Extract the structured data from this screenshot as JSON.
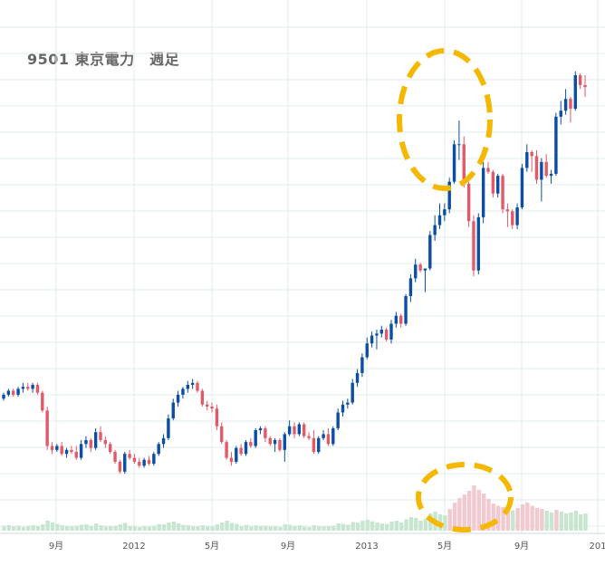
{
  "title": "9501 東京電力　週足",
  "colors": {
    "up": "#0b4ea2",
    "down": "#e05a6a",
    "grid": "#e2ebee",
    "volume": "#c8e6cf",
    "volume_highlight": "#f2c9cf",
    "annotation": "#f5b800"
  },
  "chart_data": {
    "type": "candlestick",
    "title": "9501 東京電力　週足",
    "x_tick_labels": [
      "9月",
      "2012",
      "5月",
      "9月",
      "2013",
      "5月",
      "9月",
      "201"
    ],
    "grid": true,
    "annotations": [
      {
        "shape": "dashed-ellipse",
        "target": "price spike around 5月 2013"
      },
      {
        "shape": "dashed-ellipse",
        "target": "volume spike around 5月 2013"
      }
    ],
    "ohlc": [
      [
        7.0,
        7.3,
        6.9,
        7.2
      ],
      [
        7.2,
        7.5,
        7.1,
        7.4
      ],
      [
        7.4,
        7.5,
        7.1,
        7.2
      ],
      [
        7.2,
        7.6,
        7.1,
        7.5
      ],
      [
        7.5,
        7.8,
        7.3,
        7.6
      ],
      [
        7.6,
        7.8,
        7.4,
        7.5
      ],
      [
        7.5,
        7.8,
        7.3,
        7.7
      ],
      [
        7.7,
        7.8,
        7.2,
        7.3
      ],
      [
        7.3,
        7.4,
        6.3,
        6.4
      ],
      [
        6.4,
        6.6,
        4.4,
        4.6
      ],
      [
        4.6,
        4.8,
        4.2,
        4.4
      ],
      [
        4.4,
        4.7,
        4.3,
        4.6
      ],
      [
        4.6,
        4.8,
        4.1,
        4.2
      ],
      [
        4.2,
        4.5,
        4.0,
        4.4
      ],
      [
        4.4,
        4.6,
        4.2,
        4.3
      ],
      [
        4.3,
        4.6,
        3.9,
        4.0
      ],
      [
        4.0,
        4.9,
        3.9,
        4.7
      ],
      [
        4.7,
        5.1,
        4.5,
        4.9
      ],
      [
        4.9,
        5.0,
        4.3,
        4.5
      ],
      [
        4.5,
        5.5,
        4.4,
        5.3
      ],
      [
        5.3,
        5.6,
        4.8,
        4.9
      ],
      [
        4.9,
        5.1,
        4.5,
        4.7
      ],
      [
        4.7,
        4.8,
        4.2,
        4.3
      ],
      [
        4.3,
        4.4,
        3.7,
        3.8
      ],
      [
        3.8,
        3.9,
        3.2,
        3.3
      ],
      [
        3.3,
        4.3,
        3.2,
        4.2
      ],
      [
        4.2,
        4.4,
        3.9,
        4.0
      ],
      [
        4.0,
        4.2,
        3.7,
        3.8
      ],
      [
        3.8,
        4.0,
        3.5,
        3.6
      ],
      [
        3.6,
        4.0,
        3.5,
        3.9
      ],
      [
        3.9,
        4.1,
        3.6,
        3.7
      ],
      [
        3.7,
        4.3,
        3.6,
        4.2
      ],
      [
        4.2,
        4.8,
        4.1,
        4.7
      ],
      [
        4.7,
        5.2,
        4.5,
        5.0
      ],
      [
        5.0,
        6.2,
        4.9,
        6.0
      ],
      [
        6.0,
        7.0,
        5.9,
        6.8
      ],
      [
        6.8,
        7.4,
        6.6,
        7.2
      ],
      [
        7.2,
        7.6,
        7.0,
        7.5
      ],
      [
        7.5,
        7.9,
        7.3,
        7.7
      ],
      [
        7.7,
        8.0,
        7.5,
        7.8
      ],
      [
        7.8,
        7.9,
        7.3,
        7.4
      ],
      [
        7.4,
        7.5,
        6.6,
        6.7
      ],
      [
        6.7,
        6.9,
        6.4,
        6.6
      ],
      [
        6.6,
        6.8,
        6.3,
        6.5
      ],
      [
        6.5,
        6.7,
        5.4,
        5.6
      ],
      [
        5.6,
        5.8,
        4.7,
        4.8
      ],
      [
        4.8,
        4.9,
        3.9,
        4.0
      ],
      [
        4.0,
        4.3,
        3.6,
        3.8
      ],
      [
        3.8,
        4.6,
        3.7,
        4.5
      ],
      [
        4.5,
        4.7,
        4.1,
        4.2
      ],
      [
        4.2,
        4.9,
        4.1,
        4.8
      ],
      [
        4.8,
        5.0,
        4.5,
        4.6
      ],
      [
        4.6,
        5.5,
        4.5,
        5.4
      ],
      [
        5.4,
        5.6,
        5.2,
        5.5
      ],
      [
        5.5,
        5.6,
        4.8,
        5.0
      ],
      [
        5.0,
        5.1,
        4.6,
        4.7
      ],
      [
        4.7,
        5.0,
        4.3,
        4.9
      ],
      [
        4.9,
        5.0,
        4.3,
        4.4
      ],
      [
        4.4,
        5.3,
        3.8,
        5.2
      ],
      [
        5.2,
        5.9,
        5.1,
        5.6
      ],
      [
        5.6,
        5.8,
        5.0,
        5.2
      ],
      [
        5.2,
        5.8,
        5.1,
        5.7
      ],
      [
        5.7,
        5.8,
        5.0,
        5.1
      ],
      [
        5.1,
        5.3,
        4.9,
        5.0
      ],
      [
        5.0,
        5.4,
        4.2,
        4.3
      ],
      [
        4.3,
        5.1,
        4.2,
        5.0
      ],
      [
        5.0,
        5.4,
        4.9,
        5.2
      ],
      [
        5.2,
        5.5,
        4.6,
        4.7
      ],
      [
        4.7,
        5.6,
        4.6,
        5.5
      ],
      [
        5.5,
        6.5,
        5.4,
        6.3
      ],
      [
        6.3,
        6.9,
        6.1,
        6.7
      ],
      [
        6.7,
        7.0,
        6.5,
        6.8
      ],
      [
        6.8,
        8.0,
        6.7,
        7.8
      ],
      [
        7.8,
        8.5,
        7.6,
        8.3
      ],
      [
        8.3,
        9.3,
        8.1,
        9.1
      ],
      [
        9.1,
        10.1,
        9.0,
        9.8
      ],
      [
        9.8,
        10.4,
        9.6,
        10.2
      ],
      [
        10.2,
        10.5,
        9.5,
        10.3
      ],
      [
        10.3,
        10.7,
        10.1,
        10.5
      ],
      [
        10.5,
        10.6,
        9.9,
        10.0
      ],
      [
        10.0,
        11.0,
        9.8,
        10.8
      ],
      [
        10.8,
        11.4,
        10.6,
        11.2
      ],
      [
        11.2,
        11.3,
        10.6,
        10.8
      ],
      [
        10.8,
        12.3,
        10.7,
        12.2
      ],
      [
        12.2,
        13.3,
        11.9,
        13.1
      ],
      [
        13.1,
        14.1,
        12.9,
        13.8
      ],
      [
        13.8,
        13.9,
        13.4,
        13.5
      ],
      [
        13.5,
        13.6,
        12.4,
        13.6
      ],
      [
        13.6,
        15.5,
        13.5,
        15.3
      ],
      [
        15.3,
        16.3,
        15.0,
        15.8
      ],
      [
        15.8,
        16.9,
        15.6,
        16.3
      ],
      [
        16.3,
        16.9,
        16.0,
        16.6
      ],
      [
        16.6,
        18.2,
        16.4,
        18.0
      ],
      [
        18.0,
        20.1,
        17.9,
        19.9
      ],
      [
        19.9,
        21.1,
        19.1,
        19.9
      ],
      [
        19.9,
        20.3,
        17.7,
        17.9
      ],
      [
        17.9,
        18.0,
        15.7,
        16.0
      ],
      [
        16.0,
        16.3,
        13.2,
        13.5
      ],
      [
        13.5,
        16.4,
        13.3,
        16.2
      ],
      [
        16.2,
        19.0,
        15.9,
        18.7
      ],
      [
        18.7,
        19.0,
        18.4,
        18.5
      ],
      [
        18.5,
        18.6,
        17.2,
        17.4
      ],
      [
        17.4,
        18.4,
        17.2,
        18.3
      ],
      [
        18.3,
        18.4,
        16.4,
        16.6
      ],
      [
        16.6,
        16.9,
        15.7,
        16.5
      ],
      [
        16.5,
        16.6,
        15.6,
        15.8
      ],
      [
        15.8,
        16.9,
        15.6,
        16.7
      ],
      [
        16.7,
        18.9,
        16.6,
        18.7
      ],
      [
        18.7,
        19.9,
        18.5,
        19.5
      ],
      [
        19.5,
        19.6,
        18.5,
        19.3
      ],
      [
        19.3,
        19.6,
        17.9,
        18.1
      ],
      [
        18.1,
        19.2,
        17.0,
        19.0
      ],
      [
        19.0,
        19.4,
        18.2,
        18.3
      ],
      [
        18.3,
        18.6,
        17.9,
        18.4
      ],
      [
        18.4,
        21.5,
        18.3,
        21.3
      ],
      [
        21.3,
        22.1,
        20.9,
        21.6
      ],
      [
        21.6,
        22.7,
        21.4,
        22.2
      ],
      [
        22.2,
        22.3,
        21.0,
        21.7
      ],
      [
        21.7,
        23.6,
        21.6,
        23.4
      ],
      [
        23.4,
        23.5,
        22.7,
        22.9
      ],
      [
        22.9,
        23.4,
        22.3,
        22.8
      ]
    ],
    "volume": [
      0.1,
      0.12,
      0.09,
      0.11,
      0.08,
      0.1,
      0.12,
      0.1,
      0.14,
      0.22,
      0.18,
      0.15,
      0.12,
      0.1,
      0.09,
      0.11,
      0.13,
      0.14,
      0.1,
      0.16,
      0.12,
      0.09,
      0.1,
      0.11,
      0.14,
      0.17,
      0.1,
      0.09,
      0.08,
      0.1,
      0.09,
      0.11,
      0.15,
      0.14,
      0.18,
      0.2,
      0.16,
      0.13,
      0.12,
      0.1,
      0.09,
      0.12,
      0.1,
      0.09,
      0.14,
      0.18,
      0.22,
      0.17,
      0.15,
      0.1,
      0.13,
      0.09,
      0.12,
      0.1,
      0.11,
      0.09,
      0.1,
      0.08,
      0.14,
      0.13,
      0.1,
      0.12,
      0.09,
      0.08,
      0.12,
      0.1,
      0.09,
      0.1,
      0.11,
      0.16,
      0.15,
      0.13,
      0.19,
      0.18,
      0.22,
      0.24,
      0.21,
      0.18,
      0.16,
      0.15,
      0.2,
      0.22,
      0.18,
      0.25,
      0.3,
      0.28,
      0.22,
      0.26,
      0.38,
      0.42,
      0.36,
      0.34,
      0.48,
      0.62,
      0.72,
      0.8,
      0.88,
      1.0,
      0.9,
      0.82,
      0.7,
      0.6,
      0.55,
      0.52,
      0.48,
      0.45,
      0.5,
      0.58,
      0.62,
      0.55,
      0.5,
      0.48,
      0.44,
      0.4,
      0.46,
      0.42,
      0.38,
      0.4,
      0.44,
      0.36,
      0.38
    ]
  }
}
